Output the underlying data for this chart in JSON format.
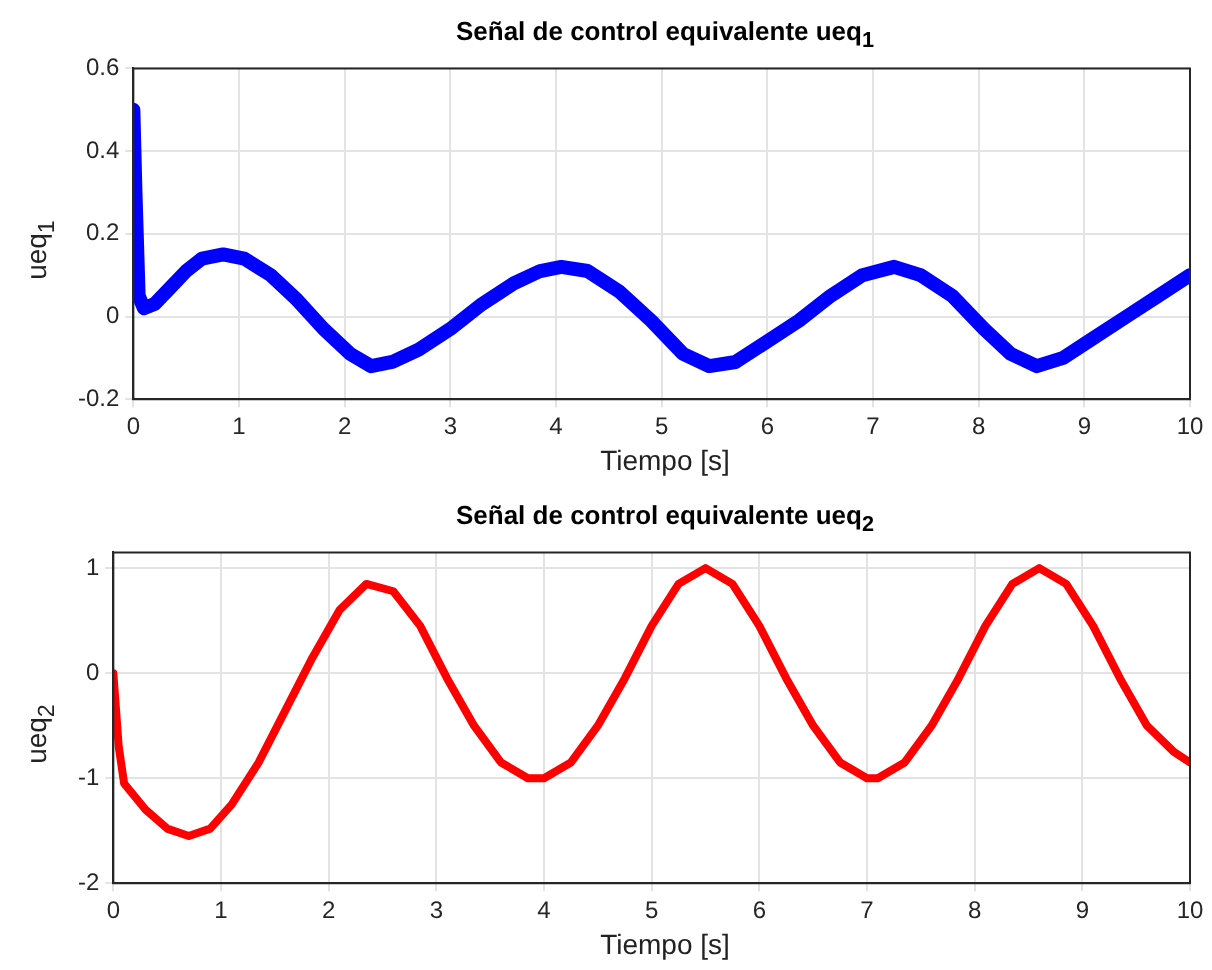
{
  "chart_data": [
    {
      "type": "line",
      "title": "Señal de control equivalente ueq$_{1}$",
      "xlabel": "Tiempo [s]",
      "ylabel": "ueq$_{1}$",
      "xlim": [
        0,
        10
      ],
      "xticks": [
        0,
        1,
        2,
        3,
        4,
        5,
        6,
        7,
        8,
        9,
        10
      ],
      "ylim": [
        -0.2,
        0.6
      ],
      "yticks": [
        -0.2,
        0,
        0.2,
        0.4,
        0.6
      ],
      "grid": true,
      "series": [
        {
          "color": "#0000ff",
          "x": [
            0,
            0.02,
            0.05,
            0.1,
            0.2,
            0.35,
            0.5,
            0.65,
            0.85,
            1.05,
            1.3,
            1.55,
            1.8,
            2.05,
            2.25,
            2.45,
            2.7,
            3.0,
            3.3,
            3.6,
            3.85,
            4.05,
            4.3,
            4.6,
            4.9,
            5.2,
            5.45,
            5.7,
            6.0,
            6.3,
            6.6,
            6.9,
            7.2,
            7.45,
            7.75,
            8.05,
            8.3,
            8.55,
            8.8,
            9.1,
            9.4,
            9.7,
            10
          ],
          "values": [
            0.5,
            0.3,
            0.05,
            0.02,
            0.03,
            0.07,
            0.11,
            0.14,
            0.15,
            0.14,
            0.1,
            0.04,
            -0.03,
            -0.09,
            -0.12,
            -0.11,
            -0.08,
            -0.03,
            0.03,
            0.08,
            0.11,
            0.12,
            0.11,
            0.06,
            -0.01,
            -0.09,
            -0.12,
            -0.11,
            -0.06,
            -0.01,
            0.05,
            0.1,
            0.12,
            0.1,
            0.05,
            -0.03,
            -0.09,
            -0.12,
            -0.1,
            -0.05,
            0.0,
            0.05,
            0.1
          ]
        }
      ]
    },
    {
      "type": "line",
      "title": "Señal de control equivalente ueq$_{2}$",
      "xlabel": "Tiempo [s]",
      "ylabel": "ueq$_{2}$",
      "xlim": [
        0,
        10
      ],
      "xticks": [
        0,
        1,
        2,
        3,
        4,
        5,
        6,
        7,
        8,
        9,
        10
      ],
      "ylim": [
        -2,
        1.15
      ],
      "yticks": [
        -2,
        -1,
        0,
        1
      ],
      "grid": true,
      "series": [
        {
          "color": "#ff0000",
          "x": [
            0,
            0.05,
            0.1,
            0.3,
            0.5,
            0.7,
            0.9,
            1.1,
            1.35,
            1.6,
            1.85,
            2.1,
            2.35,
            2.6,
            2.85,
            3.1,
            3.35,
            3.6,
            3.85,
            4.0,
            4.25,
            4.5,
            4.75,
            5.0,
            5.25,
            5.5,
            5.75,
            6.0,
            6.25,
            6.5,
            6.75,
            7.0,
            7.1,
            7.35,
            7.6,
            7.85,
            8.1,
            8.35,
            8.6,
            8.85,
            9.1,
            9.35,
            9.6,
            9.85,
            10
          ],
          "values": [
            0,
            -0.7,
            -1.05,
            -1.3,
            -1.48,
            -1.55,
            -1.48,
            -1.25,
            -0.85,
            -0.35,
            0.15,
            0.6,
            0.85,
            0.78,
            0.45,
            -0.05,
            -0.5,
            -0.85,
            -1.0,
            -1.0,
            -0.85,
            -0.5,
            -0.05,
            0.45,
            0.85,
            1.0,
            0.85,
            0.45,
            -0.05,
            -0.5,
            -0.85,
            -1.0,
            -1.0,
            -0.85,
            -0.5,
            -0.05,
            0.45,
            0.85,
            1.0,
            0.85,
            0.45,
            -0.05,
            -0.5,
            -0.75,
            -0.85
          ]
        }
      ]
    }
  ]
}
